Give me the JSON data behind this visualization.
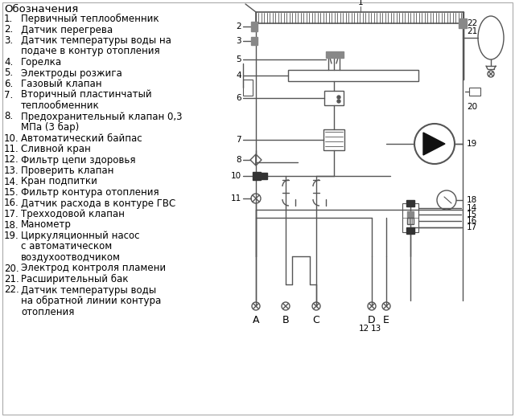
{
  "bg_color": "#ffffff",
  "line_color": "#555555",
  "dark_color": "#333333",
  "gray_color": "#888888",
  "legend_items": [
    [
      "1.",
      "Первичный теплообменник"
    ],
    [
      "2.",
      "Датчик перегрева"
    ],
    [
      "3.",
      "Датчик температуры воды на",
      "подаче в контур отопления"
    ],
    [
      "4.",
      "Горелка"
    ],
    [
      "5.",
      "Электроды розжига"
    ],
    [
      "6.",
      "Газовый клапан"
    ],
    [
      "7.",
      "Вторичный пластинчатый",
      "теплообменник"
    ],
    [
      "8.",
      "Предохранительный клапан 0,3",
      "МПа (3 бар)"
    ],
    [
      "10.",
      "Автоматический байпас"
    ],
    [
      "11.",
      "Сливной кран"
    ],
    [
      "12.",
      "Фильтр цепи здоровья"
    ],
    [
      "13.",
      "Проверить клапан"
    ],
    [
      "14.",
      "Кран подпитки"
    ],
    [
      "15.",
      "Фильтр контура отопления"
    ],
    [
      "16.",
      "Датчик расхода в контуре ГВС"
    ],
    [
      "17.",
      "Трехходовой клапан"
    ],
    [
      "18.",
      "Манометр"
    ],
    [
      "19.",
      "Циркуляционный насос",
      "с автоматическом",
      "воздухоотводчиком"
    ],
    [
      "20.",
      "Электрод контроля пламени"
    ],
    [
      "21.",
      "Расширительный бак"
    ],
    [
      "22.",
      "Датчик температуры воды",
      "на обратной линии контура",
      "отопления"
    ]
  ]
}
